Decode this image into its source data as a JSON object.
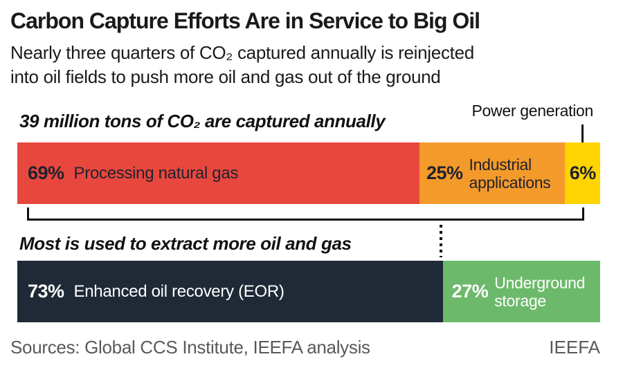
{
  "header": {
    "title": "Carbon Capture Efforts Are in Service to Big Oil",
    "subtitle_line1": "Nearly three quarters of CO₂ captured annually is reinjected",
    "subtitle_line2": "into oil fields to push more oil and gas out of the ground"
  },
  "chart_data": [
    {
      "type": "bar",
      "subtype": "stacked-horizontal-percent",
      "title": "39 million tons of CO₂ are captured annually",
      "unit": "%",
      "categories": [
        "Processing natural gas",
        "Industrial applications",
        "Power generation"
      ],
      "values": [
        69,
        25,
        6
      ],
      "callout": {
        "label": "Power generation"
      },
      "segments": [
        {
          "name": "Processing natural gas",
          "value": 69,
          "pct": "69%",
          "color": "#e8473e",
          "label_line1": "Processing natural gas"
        },
        {
          "name": "Industrial applications",
          "value": 25,
          "pct": "25%",
          "color": "#f49a2b",
          "label_line1": "Industrial",
          "label_line2": "applications"
        },
        {
          "name": "Power generation",
          "value": 6,
          "pct": "6%",
          "color": "#ffd400"
        }
      ]
    },
    {
      "type": "bar",
      "subtype": "stacked-horizontal-percent",
      "title": "Most is used to extract more oil and gas",
      "unit": "%",
      "categories": [
        "Enhanced oil recovery (EOR)",
        "Underground storage"
      ],
      "values": [
        73,
        27
      ],
      "segments": [
        {
          "name": "Enhanced oil recovery (EOR)",
          "value": 73,
          "pct": "73%",
          "color": "#1f2a36",
          "label_line1": "Enhanced oil recovery (EOR)"
        },
        {
          "name": "Underground storage",
          "value": 27,
          "pct": "27%",
          "color": "#6db96b",
          "label_line1": "Underground",
          "label_line2": "storage"
        }
      ]
    }
  ],
  "colors": {
    "red": "#e8473e",
    "orange": "#f49a2b",
    "yellow": "#ffd400",
    "navy": "#1f2a36",
    "green": "#6db96b",
    "line": "#111111",
    "footer_gray": "#58595b"
  },
  "footer": {
    "sources": "Sources: Global CCS Institute, IEEFA analysis",
    "brand": "IEEFA"
  }
}
